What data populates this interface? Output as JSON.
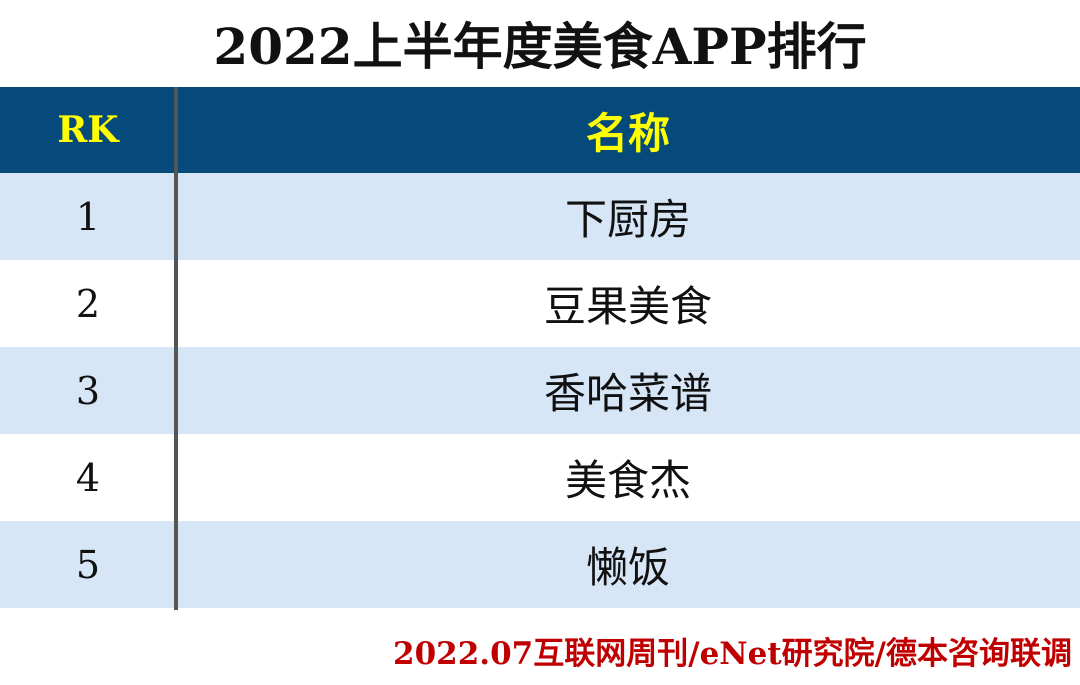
{
  "title": "2022上半年度美食APP排行",
  "table": {
    "headers": {
      "rank": "RK",
      "name": "名称"
    },
    "rows": [
      {
        "rank": "1",
        "name": "下厨房"
      },
      {
        "rank": "2",
        "name": "豆果美食"
      },
      {
        "rank": "3",
        "name": "香哈菜谱"
      },
      {
        "rank": "4",
        "name": "美食杰"
      },
      {
        "rank": "5",
        "name": "懒饭"
      }
    ]
  },
  "source": "2022.07互联网周刊/eNet研究院/德本咨询联调",
  "colors": {
    "header_bg": "#064a7c",
    "header_text": "#ffff00",
    "band_bg": "#d7e6f6",
    "source_text": "#c00000"
  }
}
